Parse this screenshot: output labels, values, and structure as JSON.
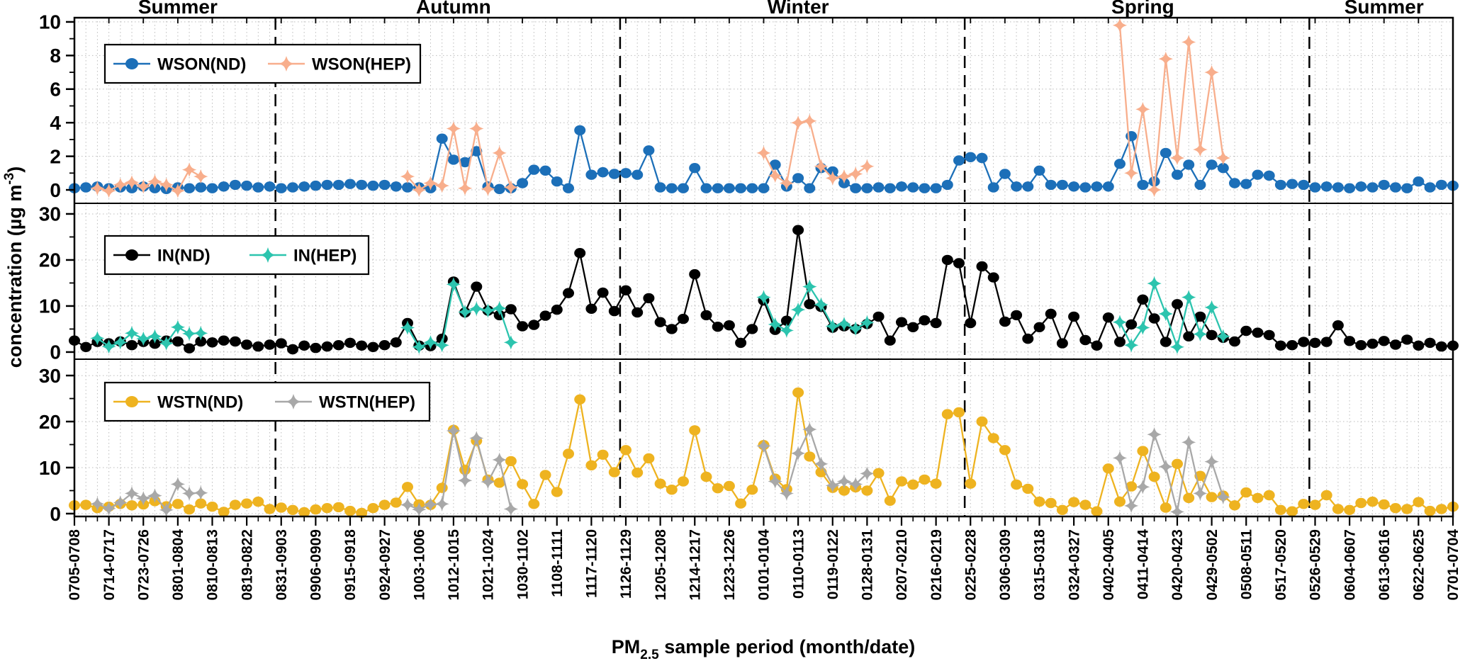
{
  "figure": {
    "background": "#ffffff",
    "x_axis_title": {
      "prefix": "PM",
      "subscript": "2.5",
      "suffix": " sample period (month/date)"
    },
    "y_axis_title": {
      "main": "concentration (µg m",
      "superscript": "-3",
      "close": ")"
    }
  },
  "seasons": [
    {
      "label": "Summer",
      "center_index": 9
    },
    {
      "label": "Autumn",
      "center_index": 33
    },
    {
      "label": "Winter",
      "center_index": 63
    },
    {
      "label": "Spring",
      "center_index": 93
    },
    {
      "label": "Summer",
      "center_index": 114
    }
  ],
  "season_divider_indices": [
    17.5,
    47.5,
    77.5,
    107.5
  ],
  "colors": {
    "wson_nd": "#1c6fb8",
    "wson_hep": "#f8ae8c",
    "in_nd": "#000000",
    "in_hep": "#2cc4ae",
    "wstn_nd": "#eeb320",
    "wstn_hep": "#a8a8a8",
    "grid": "#bcbcbc",
    "axis": "#000000"
  },
  "chart_data": {
    "type": "line",
    "n_points": 121,
    "points_per_label": 3,
    "x_tick_labels": [
      "0705-0708",
      "0714-0717",
      "0723-0726",
      "0801-0804",
      "0810-0813",
      "0819-0822",
      "0831-0903",
      "0906-0909",
      "0915-0918",
      "0924-0927",
      "1003-1006",
      "1012-1015",
      "1021-1024",
      "1030-1102",
      "1108-1111",
      "1117-1120",
      "1126-1129",
      "1205-1208",
      "1214-1217",
      "1223-1226",
      "0101-0104",
      "0110-0113",
      "0119-0122",
      "0128-0131",
      "0207-0210",
      "0216-0219",
      "0225-0228",
      "0306-0309",
      "0315-0318",
      "0324-0327",
      "0402-0405",
      "0411-0414",
      "0420-0423",
      "0429-0502",
      "0508-0511",
      "0517-0520",
      "0526-0529",
      "0604-0607",
      "0613-0616",
      "0622-0625",
      "0701-0704"
    ],
    "panels": [
      {
        "id": "wson",
        "yticks": [
          0,
          2,
          4,
          6,
          8,
          10
        ],
        "yticks_minor": [
          1,
          3,
          5,
          7,
          9
        ],
        "series": [
          {
            "name": "WSON(ND)",
            "color": "#1c6fb8",
            "marker": "circle",
            "values": [
              0.1,
              0.15,
              0.2,
              0.1,
              0.15,
              0.1,
              0.2,
              0.1,
              0.05,
              0.15,
              0.1,
              0.15,
              0.1,
              0.2,
              0.3,
              0.25,
              0.15,
              0.2,
              0.1,
              0.15,
              0.2,
              0.25,
              0.3,
              0.3,
              0.35,
              0.3,
              0.25,
              0.3,
              0.2,
              0.15,
              0.15,
              0.1,
              3.05,
              1.8,
              1.65,
              2.3,
              0.2,
              0.05,
              0.1,
              0.4,
              1.2,
              1.15,
              0.5,
              0.1,
              3.55,
              0.9,
              1.05,
              0.95,
              1.0,
              0.9,
              2.35,
              0.15,
              0.1,
              0.1,
              1.3,
              0.1,
              0.1,
              0.1,
              0.1,
              0.1,
              0.1,
              1.5,
              0.2,
              0.7,
              0.1,
              1.3,
              1.1,
              0.4,
              0.1,
              0.1,
              0.15,
              0.1,
              0.2,
              0.15,
              0.1,
              0.1,
              0.3,
              1.75,
              1.95,
              1.9,
              0.15,
              0.95,
              0.2,
              0.2,
              1.15,
              0.3,
              0.3,
              0.2,
              0.15,
              0.2,
              0.2,
              1.55,
              3.2,
              0.3,
              0.5,
              2.2,
              0.9,
              1.5,
              0.3,
              1.5,
              1.3,
              0.4,
              0.35,
              0.9,
              0.85,
              0.3,
              0.35,
              0.3,
              0.15,
              0.2,
              0.15,
              0.1,
              0.2,
              0.15,
              0.3,
              0.15,
              0.1,
              0.5,
              0.15,
              0.3,
              0.25
            ]
          },
          {
            "name": "WSON(HEP)",
            "color": "#f8ae8c",
            "marker": "star4",
            "values": {
              "2": 0.1,
              "3": -0.05,
              "4": 0.3,
              "5": 0.45,
              "6": 0.2,
              "7": 0.5,
              "8": 0.3,
              "9": -0.05,
              "10": 1.2,
              "11": 0.8,
              "29": 0.8,
              "30": 0,
              "31": 0.4,
              "32": 0.25,
              "33": 3.65,
              "34": 0.1,
              "35": 3.65,
              "36": 0.05,
              "37": 2.2,
              "38": 0.15,
              "60": 2.2,
              "61": 0.85,
              "62": 0.4,
              "63": 4.0,
              "64": 4.1,
              "65": 1.4,
              "66": 0.7,
              "67": 0.8,
              "68": 0.95,
              "69": 1.4,
              "91": 9.8,
              "92": 1.0,
              "93": 4.8,
              "94": 0.0,
              "95": 7.8,
              "96": 1.9,
              "97": 8.8,
              "98": 2.4,
              "99": 7.0,
              "100": 1.9
            }
          }
        ]
      },
      {
        "id": "in",
        "yticks": [
          0,
          10,
          20,
          30
        ],
        "yticks_minor": [
          5,
          15,
          25
        ],
        "series": [
          {
            "name": "IN(ND)",
            "color": "#000000",
            "marker": "circle",
            "values": [
              2.5,
              1.1,
              2.2,
              1.9,
              2.3,
              1.5,
              2.2,
              1.8,
              2.5,
              2.3,
              0.8,
              2.3,
              2.1,
              2.5,
              2.3,
              1.6,
              1.2,
              1.6,
              1.9,
              0.6,
              1.4,
              0.9,
              1.2,
              1.5,
              2.0,
              1.4,
              1.1,
              1.5,
              2.1,
              6.3,
              1.4,
              1.3,
              2.9,
              15.3,
              8.6,
              14.2,
              9.0,
              8.0,
              9.3,
              5.6,
              5.9,
              7.9,
              9.2,
              12.8,
              21.5,
              9.4,
              12.9,
              8.9,
              13.4,
              8.6,
              11.7,
              6.5,
              5.0,
              7.2,
              16.9,
              8.0,
              5.5,
              5.8,
              2.0,
              5.0,
              11.2,
              4.8,
              6.8,
              26.5,
              10.4,
              9.8,
              5.3,
              5.6,
              5.0,
              6.1,
              7.7,
              2.5,
              6.5,
              5.4,
              6.9,
              6.3,
              20.0,
              19.3,
              6.3,
              18.6,
              16.2,
              6.6,
              8.0,
              2.9,
              5.4,
              8.3,
              1.9,
              7.7,
              2.6,
              1.4,
              7.5,
              2.2,
              6.0,
              11.4,
              7.3,
              2.2,
              10.4,
              3.4,
              7.7,
              3.7,
              3.1,
              2.3,
              4.6,
              4.2,
              3.7,
              1.4,
              1.5,
              2.2,
              2.0,
              2.2,
              5.8,
              2.4,
              1.5,
              1.8,
              2.4,
              1.6,
              2.7,
              1.4,
              2.0,
              1.2,
              1.4
            ]
          },
          {
            "name": "IN(HEP)",
            "color": "#2cc4ae",
            "marker": "star4",
            "values": {
              "2": 3.0,
              "3": 1.2,
              "4": 2.1,
              "5": 4.1,
              "6": 2.9,
              "7": 3.4,
              "8": 1.9,
              "9": 5.4,
              "10": 4.0,
              "11": 4.1,
              "29": 5.3,
              "30": 1.1,
              "31": 2.1,
              "32": 1.5,
              "33": 14.7,
              "34": 8.7,
              "35": 9.4,
              "36": 9.0,
              "37": 9.5,
              "38": 2.1,
              "60": 11.9,
              "61": 6.0,
              "62": 4.7,
              "63": 9.2,
              "64": 14.2,
              "65": 10.3,
              "66": 5.6,
              "67": 6.1,
              "68": 5.1,
              "69": 6.4,
              "91": 6.5,
              "92": 1.5,
              "93": 5.3,
              "94": 14.9,
              "95": 8.3,
              "96": 1.1,
              "97": 11.9,
              "98": 3.9,
              "99": 9.7,
              "100": 3.4
            }
          }
        ]
      },
      {
        "id": "wstn",
        "yticks": [
          0,
          10,
          20,
          30
        ],
        "yticks_minor": [
          5,
          15,
          25
        ],
        "series": [
          {
            "name": "WSTN(ND)",
            "color": "#eeb320",
            "marker": "circle",
            "values": [
              1.8,
              1.9,
              1.2,
              1.5,
              2.1,
              1.8,
              2.0,
              2.7,
              1.6,
              2.1,
              0.9,
              2.2,
              1.5,
              0.4,
              1.9,
              2.2,
              2.6,
              1.0,
              1.3,
              0.8,
              0.3,
              0.9,
              1.2,
              1.4,
              0.6,
              0.15,
              1.2,
              1.9,
              2.4,
              5.8,
              2.0,
              1.9,
              5.6,
              18.2,
              9.5,
              15.8,
              7.4,
              6.7,
              11.4,
              6.4,
              2.1,
              8.4,
              4.7,
              13.0,
              24.8,
              10.5,
              12.8,
              9.0,
              13.8,
              8.9,
              12.0,
              6.5,
              5.2,
              7.0,
              18.1,
              8.0,
              5.5,
              6.0,
              2.2,
              5.2,
              14.9,
              7.6,
              5.3,
              26.3,
              12.4,
              9.0,
              5.6,
              5.0,
              5.7,
              5.0,
              8.8,
              2.8,
              7.0,
              6.3,
              7.4,
              6.5,
              21.6,
              22.0,
              6.5,
              20.0,
              16.4,
              13.8,
              6.3,
              5.4,
              2.6,
              2.3,
              0.8,
              2.5,
              1.9,
              0.5,
              9.8,
              2.6,
              5.9,
              13.6,
              8.0,
              1.3,
              10.8,
              3.4,
              8.2,
              3.6,
              3.9,
              1.8,
              4.6,
              3.4,
              4.0,
              0.8,
              0.5,
              2.1,
              1.9,
              4.0,
              1.0,
              0.8,
              2.3,
              2.6,
              2.0,
              1.2,
              1.0,
              2.5,
              0.6,
              1.0,
              1.5
            ]
          },
          {
            "name": "WSTN(HEP)",
            "color": "#a8a8a8",
            "marker": "star4",
            "values": {
              "2": 2.1,
              "3": 1.1,
              "4": 2.4,
              "5": 4.4,
              "6": 3.3,
              "7": 3.9,
              "8": 0.8,
              "9": 6.4,
              "10": 4.4,
              "11": 4.5,
              "29": 1.9,
              "30": 0.9,
              "31": 2.0,
              "32": 2.1,
              "33": 18.0,
              "34": 7.2,
              "35": 16.4,
              "36": 6.9,
              "37": 11.7,
              "38": 1.0,
              "60": 14.7,
              "61": 7.0,
              "62": 4.4,
              "63": 13.1,
              "64": 18.3,
              "65": 10.8,
              "66": 6.1,
              "67": 7.0,
              "68": 6.4,
              "69": 8.7,
              "91": 12.1,
              "92": 1.7,
              "93": 5.8,
              "94": 17.2,
              "95": 10.2,
              "96": 0.4,
              "97": 15.5,
              "98": 4.4,
              "99": 11.3,
              "100": 3.6
            }
          }
        ]
      }
    ]
  }
}
